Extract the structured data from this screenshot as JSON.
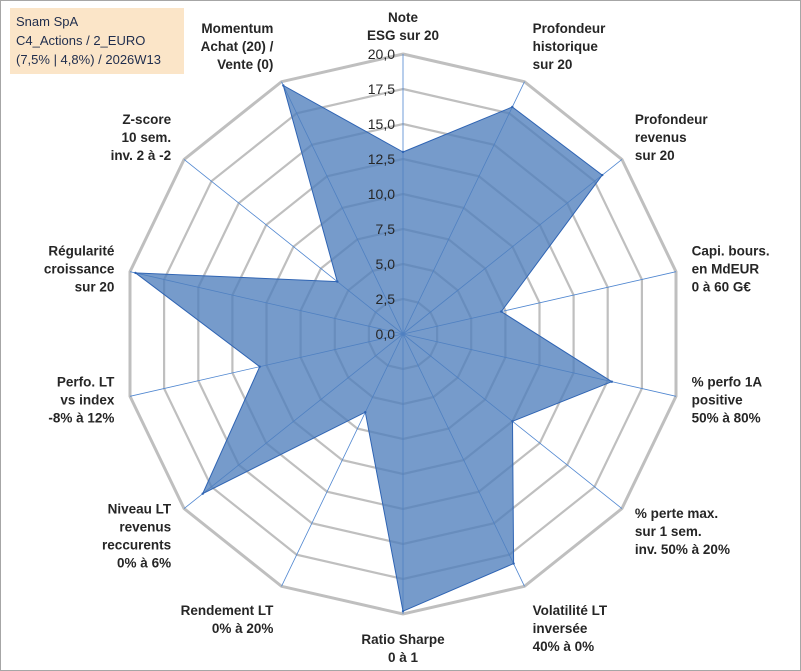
{
  "info_box": {
    "line1": "Snam SpA",
    "line2": "C4_Actions / 2_EURO",
    "line3": "(7,5% | 4,8%) / 2026W13"
  },
  "colors": {
    "fill": "#4f7fbd",
    "fill_opacity": 0.78,
    "stroke": "#2f64b3",
    "grid": "#bfbfbf",
    "spoke": "#4f86d0",
    "label": "#262626",
    "info_bg": "#fbe5c8"
  },
  "chart_data": {
    "type": "radar",
    "title": "",
    "max": 20,
    "step": 2.5,
    "grid": true,
    "tick_labels": [
      "0,0",
      "2,5",
      "5,0",
      "7,5",
      "10,0",
      "12,5",
      "15,0",
      "17,5",
      "20,0"
    ],
    "axes": [
      {
        "label": [
          "Note",
          "ESG sur 20"
        ]
      },
      {
        "label": [
          "Profondeur",
          "historique",
          "sur 20"
        ]
      },
      {
        "label": [
          "Profondeur",
          "revenus",
          "sur 20"
        ]
      },
      {
        "label": [
          "Capi. bours.",
          "en MdEUR",
          "0 à 60 G€"
        ]
      },
      {
        "label": [
          "% perfo 1A",
          "positive",
          "50% à 80%"
        ]
      },
      {
        "label": [
          "% perte max.",
          "sur 1 sem.",
          "inv. 50% à 20%"
        ]
      },
      {
        "label": [
          "Volatilité LT",
          "inversée",
          "40% à 0%"
        ]
      },
      {
        "label": [
          "Ratio Sharpe",
          "0 à 1"
        ]
      },
      {
        "label": [
          "Rendement LT",
          "0% à 20%"
        ]
      },
      {
        "label": [
          "Niveau LT",
          "revenus",
          "reccurents",
          "0% à 6%"
        ]
      },
      {
        "label": [
          "Perfo. LT",
          "vs index",
          "-8% à 12%"
        ]
      },
      {
        "label": [
          "Régularité",
          "croissance",
          "sur 20"
        ]
      },
      {
        "label": [
          "Z-score",
          "10 sem.",
          "inv. 2 à -2"
        ]
      },
      {
        "label": [
          "Momentum",
          "Achat (20) /",
          "Vente (0)"
        ]
      }
    ],
    "series": [
      {
        "values": [
          13.0,
          18.0,
          18.2,
          7.2,
          15.3,
          10.0,
          18.2,
          19.8,
          6.2,
          18.3,
          10.5,
          19.6,
          6.0,
          19.7
        ]
      }
    ]
  }
}
